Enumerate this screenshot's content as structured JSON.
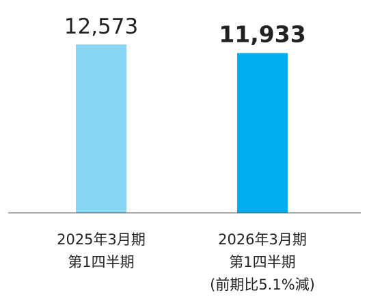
{
  "chart_data": {
    "type": "bar",
    "title": "",
    "xlabel": "",
    "ylabel": "",
    "ylim": [
      0,
      12573
    ],
    "grid": false,
    "categories": [
      [
        "2025年3月期",
        "第1四半期"
      ],
      [
        "2026年3月期",
        "第1四半期",
        "(前期比5.1%減)"
      ]
    ],
    "values": [
      12573,
      11933
    ],
    "value_labels": [
      "12,573",
      "11,933"
    ],
    "colors": [
      "#87d5f2",
      "#00aeef"
    ],
    "baseline_color": "#555555"
  }
}
